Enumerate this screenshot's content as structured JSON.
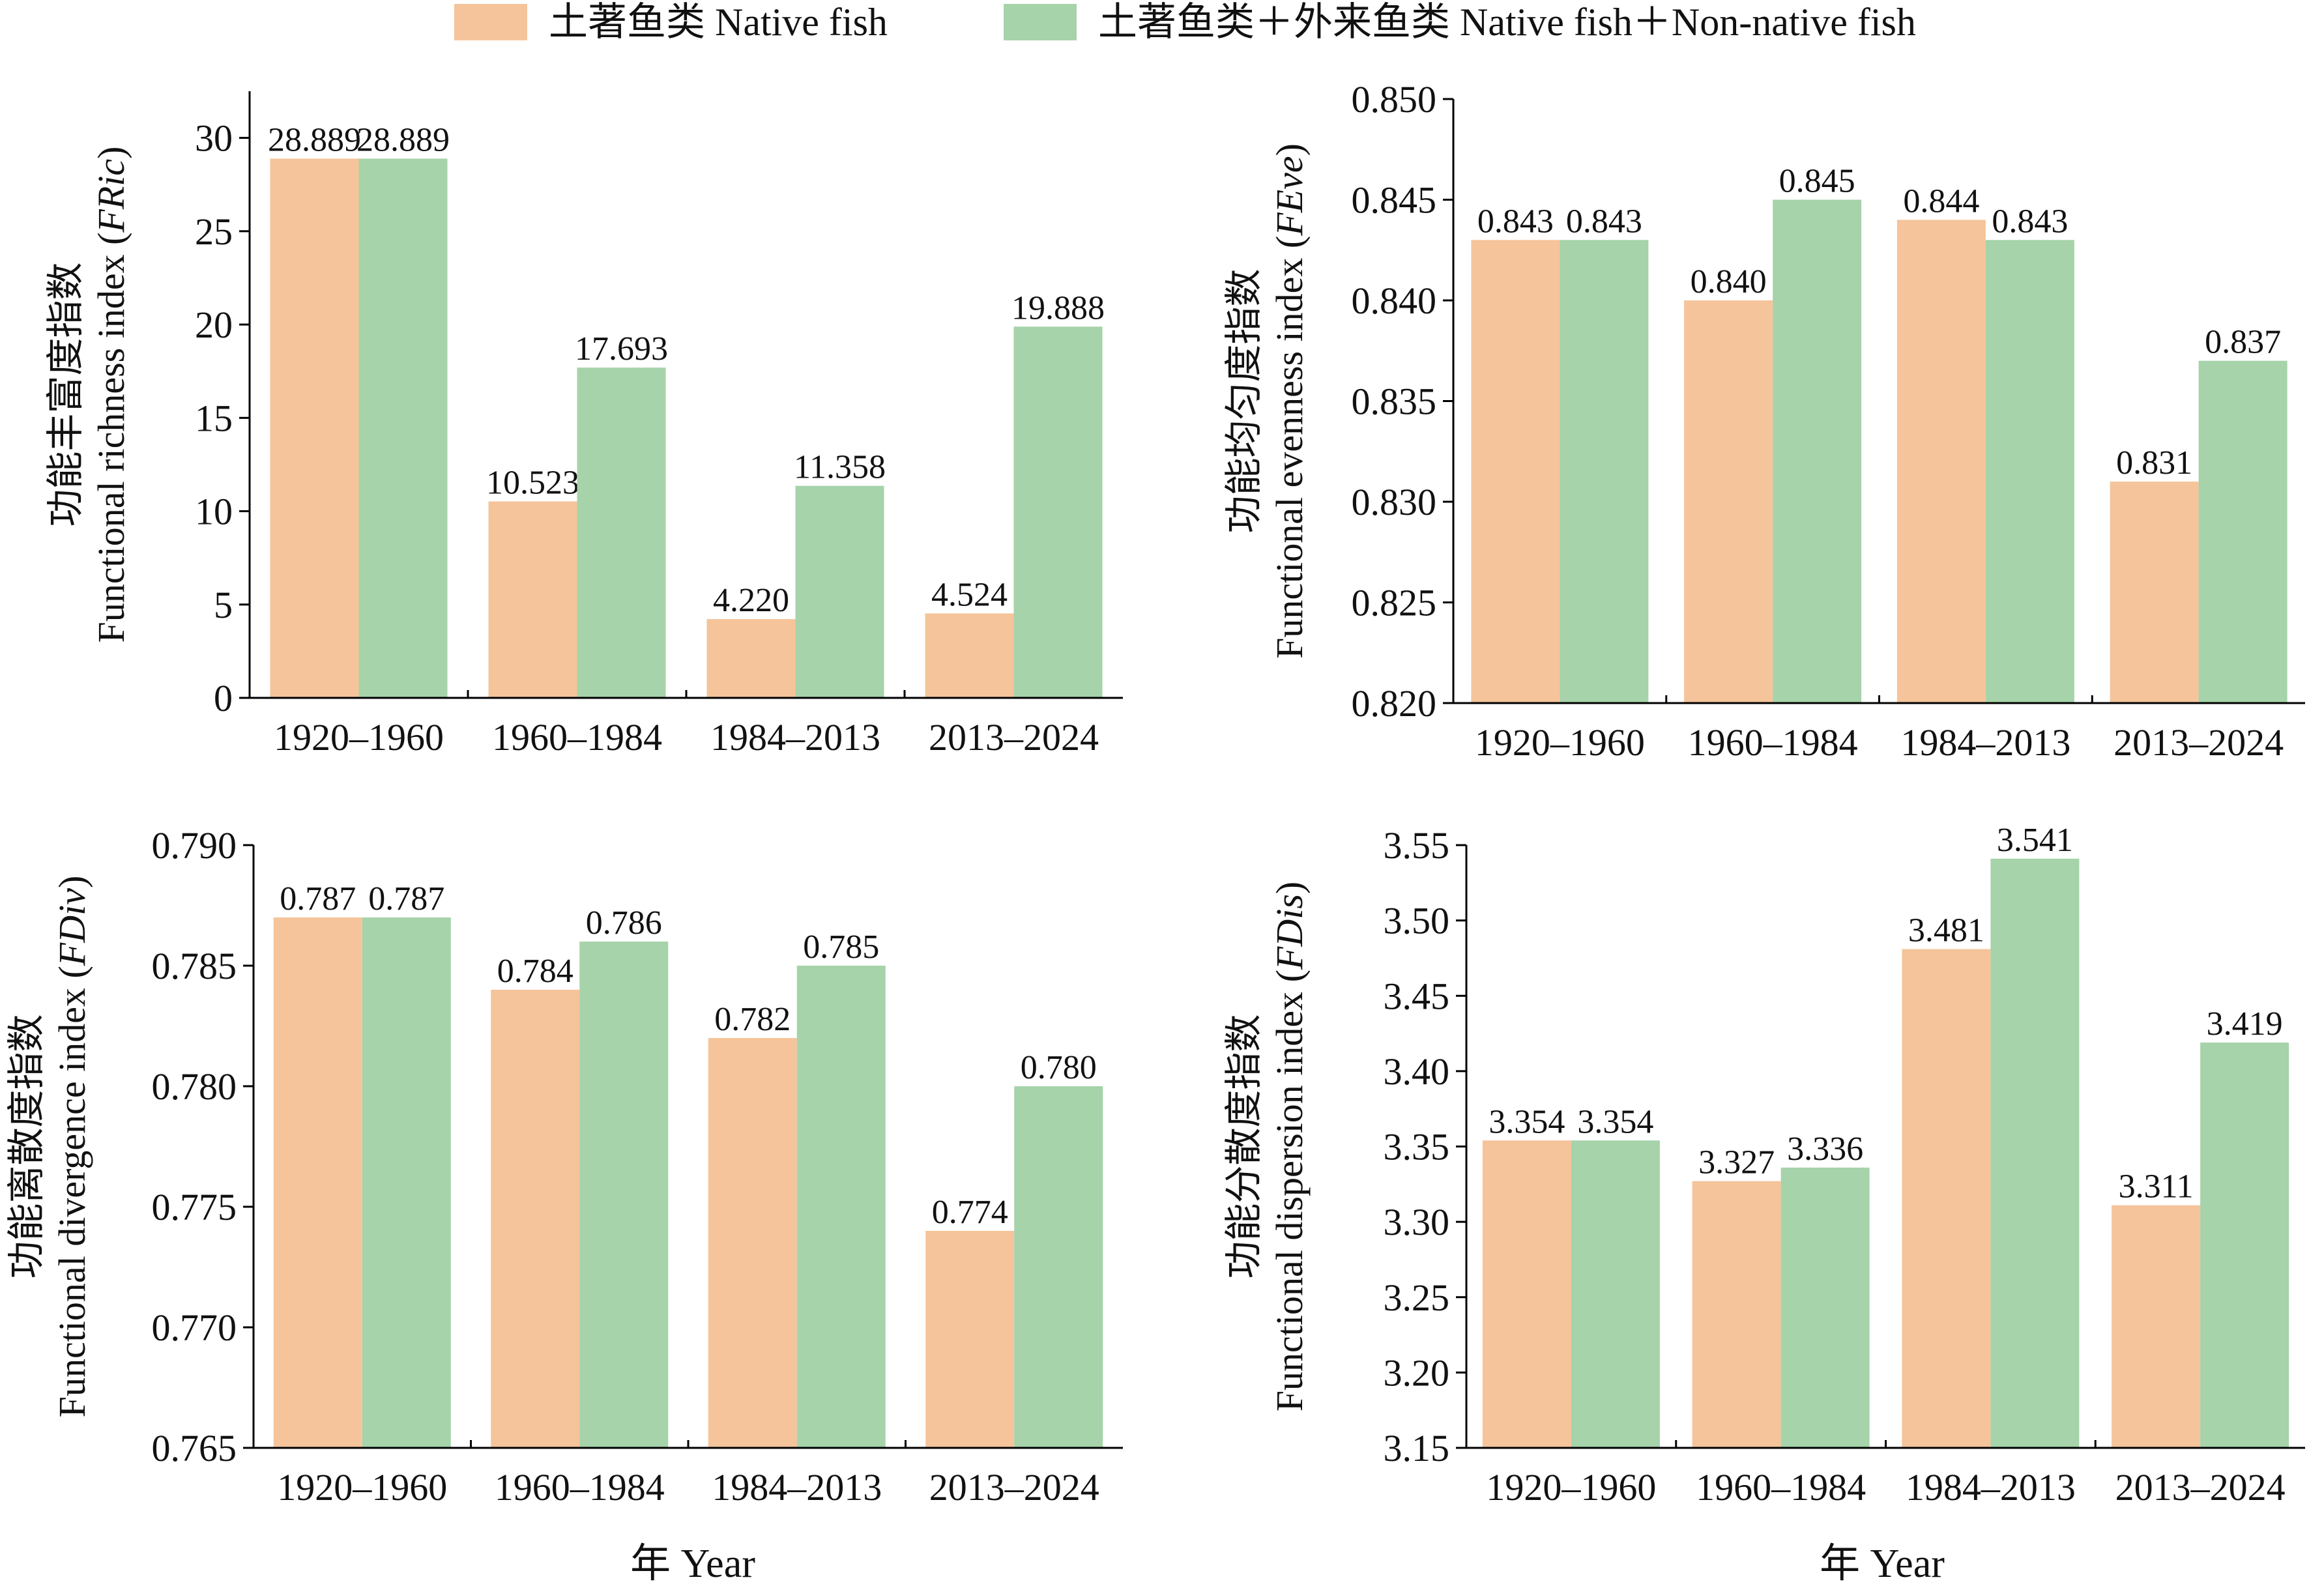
{
  "legend": {
    "items": [
      {
        "label": "土著鱼类 Native fish",
        "color": "#F5C49A"
      },
      {
        "label": "土著鱼类＋外来鱼类 Native fish＋Non-native fish",
        "color": "#A6D3AA"
      }
    ]
  },
  "x_titles": [
    "年 Year",
    "年 Year"
  ],
  "chart_data": [
    {
      "type": "bar",
      "id": "fric",
      "ylabel_cn": "功能丰富度指数",
      "ylabel_en": "Functional richness index (",
      "ylabel_abbr": "FRic",
      "ylabel_close": ")",
      "categories": [
        "1920–1960",
        "1960–1984",
        "1984–2013",
        "2013–2024"
      ],
      "series": [
        {
          "name": "土著鱼类 Native fish",
          "values": [
            28.889,
            10.523,
            4.22,
            4.524
          ],
          "labels": [
            "28.889",
            "10.523",
            "4.220",
            "4.524"
          ]
        },
        {
          "name": "土著鱼类＋外来鱼类 Native fish＋Non-native fish",
          "values": [
            28.889,
            17.693,
            11.358,
            19.888
          ],
          "labels": [
            "28.889",
            "17.693",
            "11.358",
            "19.888"
          ]
        }
      ],
      "ylim": [
        0,
        32.5
      ],
      "yticks": [
        0,
        5,
        10,
        15,
        20,
        25,
        30
      ],
      "ytick_labels": [
        "0",
        "5",
        "10",
        "15",
        "20",
        "25",
        "30"
      ]
    },
    {
      "type": "bar",
      "id": "feve",
      "ylabel_cn": "功能均匀度指数",
      "ylabel_en": "Functional evenness index (",
      "ylabel_abbr": "FEve",
      "ylabel_close": ")",
      "categories": [
        "1920–1960",
        "1960–1984",
        "1984–2013",
        "2013–2024"
      ],
      "series": [
        {
          "name": "土著鱼类 Native fish",
          "values": [
            0.843,
            0.84,
            0.844,
            0.831
          ],
          "labels": [
            "0.843",
            "0.840",
            "0.844",
            "0.831"
          ]
        },
        {
          "name": "土著鱼类＋外来鱼类 Native fish＋Non-native fish",
          "values": [
            0.843,
            0.845,
            0.843,
            0.837
          ],
          "labels": [
            "0.843",
            "0.845",
            "0.843",
            "0.837"
          ]
        }
      ],
      "ylim": [
        0.82,
        0.85
      ],
      "yticks": [
        0.82,
        0.825,
        0.83,
        0.835,
        0.84,
        0.845,
        0.85
      ],
      "ytick_labels": [
        "0.820",
        "0.825",
        "0.830",
        "0.835",
        "0.840",
        "0.845",
        "0.850"
      ]
    },
    {
      "type": "bar",
      "id": "fdiv",
      "ylabel_cn": "功能离散度指数",
      "ylabel_en": "Functional divergence index (",
      "ylabel_abbr": "FDiv",
      "ylabel_close": ")",
      "categories": [
        "1920–1960",
        "1960–1984",
        "1984–2013",
        "2013–2024"
      ],
      "series": [
        {
          "name": "土著鱼类 Native fish",
          "values": [
            0.787,
            0.784,
            0.782,
            0.774
          ],
          "labels": [
            "0.787",
            "0.784",
            "0.782",
            "0.774"
          ]
        },
        {
          "name": "土著鱼类＋外来鱼类 Native fish＋Non-native fish",
          "values": [
            0.787,
            0.786,
            0.785,
            0.78
          ],
          "labels": [
            "0.787",
            "0.786",
            "0.785",
            "0.780"
          ]
        }
      ],
      "ylim": [
        0.765,
        0.79
      ],
      "yticks": [
        0.765,
        0.77,
        0.775,
        0.78,
        0.785,
        0.79
      ],
      "ytick_labels": [
        "0.765",
        "0.770",
        "0.775",
        "0.780",
        "0.785",
        "0.790"
      ]
    },
    {
      "type": "bar",
      "id": "fdis",
      "ylabel_cn": "功能分散度指数",
      "ylabel_en": "Functional dispersion index (",
      "ylabel_abbr": "FDis",
      "ylabel_close": ")",
      "categories": [
        "1920–1960",
        "1960–1984",
        "1984–2013",
        "2013–2024"
      ],
      "series": [
        {
          "name": "土著鱼类 Native fish",
          "values": [
            3.354,
            3.327,
            3.481,
            3.311
          ],
          "labels": [
            "3.354",
            "3.327",
            "3.481",
            "3.311"
          ]
        },
        {
          "name": "土著鱼类＋外来鱼类 Native fish＋Non-native fish",
          "values": [
            3.354,
            3.336,
            3.541,
            3.419
          ],
          "labels": [
            "3.354",
            "3.336",
            "3.541",
            "3.419"
          ]
        }
      ],
      "ylim": [
        3.15,
        3.55
      ],
      "yticks": [
        3.15,
        3.2,
        3.25,
        3.3,
        3.35,
        3.4,
        3.45,
        3.5,
        3.55
      ],
      "ytick_labels": [
        "3.15",
        "3.20",
        "3.25",
        "3.30",
        "3.35",
        "3.40",
        "3.45",
        "3.50",
        "3.55"
      ]
    }
  ]
}
